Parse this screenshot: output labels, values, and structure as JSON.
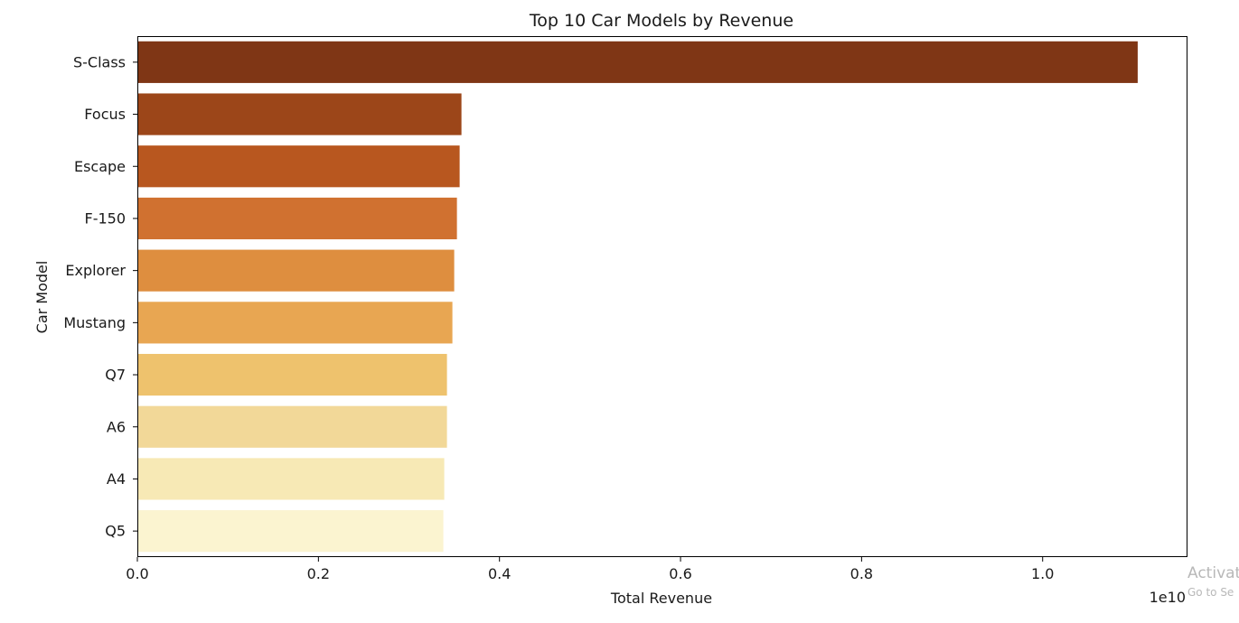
{
  "chart_data": {
    "type": "bar",
    "orientation": "horizontal",
    "title": "Top 10 Car Models by Revenue",
    "xlabel": "Total Revenue",
    "ylabel": "Car Model",
    "x_offset_label": "1e10",
    "xlim": [
      0,
      1.16
    ],
    "xticks": [
      0.0,
      0.2,
      0.4,
      0.6,
      0.8,
      1.0
    ],
    "xtick_labels": [
      "0.0",
      "0.2",
      "0.4",
      "0.6",
      "0.8",
      "1.0"
    ],
    "grid": false,
    "categories": [
      "S-Class",
      "Focus",
      "Escape",
      "F-150",
      "Explorer",
      "Mustang",
      "Q7",
      "A6",
      "A4",
      "Q5"
    ],
    "values": [
      1.105,
      0.358,
      0.356,
      0.353,
      0.35,
      0.348,
      0.342,
      0.342,
      0.339,
      0.338
    ],
    "colors": [
      "#7f3615",
      "#9c4619",
      "#b8571f",
      "#d07130",
      "#de8e3f",
      "#e8a652",
      "#eec26d",
      "#f2d898",
      "#f7e9b5",
      "#fbf4d0"
    ]
  },
  "watermark": {
    "main": "Activat",
    "sub": "Go to Se"
  }
}
